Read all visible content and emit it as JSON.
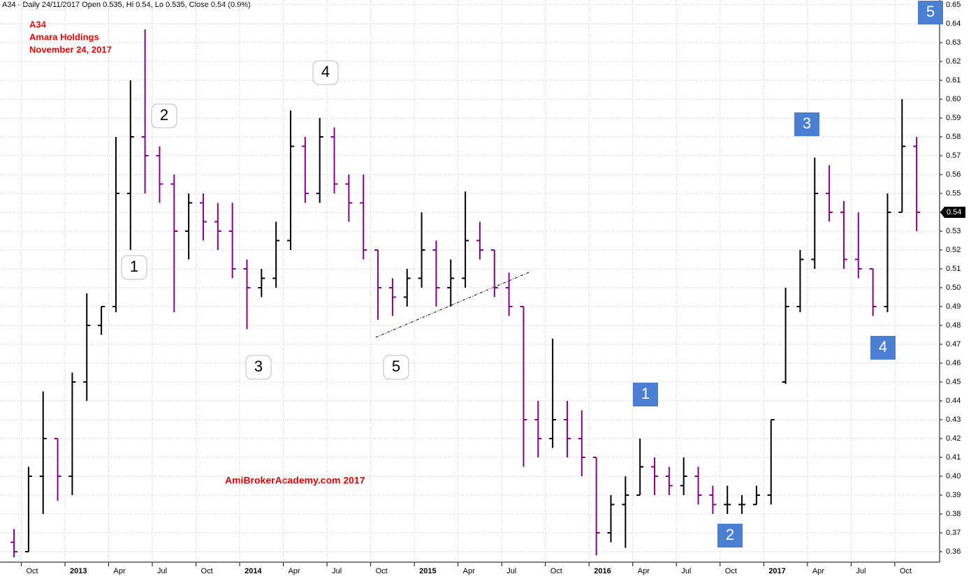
{
  "chart_data": {
    "type": "ohlc",
    "header": "A34 - Daily 24/11/2017 Open 0.535, Hi 0.54, Lo 0.535, Close 0.54 (0.9%)",
    "annotations": [
      "A34",
      "Amara Holdings",
      "November 24, 2017"
    ],
    "watermark": "AmiBrokerAcademy.com  2017",
    "wave_labels": [
      "1",
      "2",
      "3",
      "4",
      "5"
    ],
    "wave_labels_blue": [
      "1",
      "2",
      "3",
      "4",
      "5"
    ],
    "last_price": 0.54,
    "up_color": "#000000",
    "down_color": "#8b008b",
    "grid": true,
    "categories": [
      null,
      "Oct",
      null,
      null,
      "2013",
      null,
      null,
      "Apr",
      null,
      null,
      "Jul",
      null,
      null,
      "Oct",
      null,
      null,
      "2014",
      null,
      null,
      "Apr",
      null,
      null,
      "Jul",
      null,
      null,
      "Oct",
      null,
      null,
      "2015",
      null,
      null,
      "Apr",
      null,
      null,
      "Jul",
      null,
      null,
      "Oct",
      null,
      null,
      "2016",
      null,
      null,
      "Apr",
      null,
      null,
      "Jul",
      null,
      null,
      "Oct",
      null,
      null,
      "2017",
      null,
      null,
      "Apr",
      null,
      null,
      "Jul",
      null,
      null,
      "Oct",
      null
    ],
    "open": [
      0.365,
      0.36,
      0.4,
      0.42,
      0.4,
      0.45,
      0.48,
      0.49,
      0.55,
      0.58,
      0.57,
      0.555,
      0.53,
      0.545,
      0.535,
      0.53,
      0.51,
      0.5,
      0.505,
      0.525,
      0.575,
      0.55,
      0.58,
      0.555,
      0.545,
      0.52,
      0.5,
      0.495,
      0.505,
      0.52,
      0.5,
      0.505,
      0.525,
      0.52,
      0.5,
      0.49,
      0.43,
      0.42,
      0.43,
      0.42,
      0.41,
      0.37,
      0.385,
      0.39,
      0.405,
      0.4,
      0.395,
      0.4,
      0.39,
      0.385,
      0.385,
      0.385,
      0.39,
      0.45,
      0.49,
      0.515,
      0.55,
      0.54,
      0.515,
      0.51,
      0.49,
      0.54,
      0.575
    ],
    "high": [
      0.372,
      0.405,
      0.445,
      0.42,
      0.455,
      0.497,
      0.49,
      0.58,
      0.61,
      0.637,
      0.575,
      0.56,
      0.55,
      0.55,
      0.545,
      0.545,
      0.515,
      0.51,
      0.535,
      0.594,
      0.58,
      0.59,
      0.585,
      0.56,
      0.56,
      0.52,
      0.505,
      0.51,
      0.54,
      0.525,
      0.515,
      0.551,
      0.535,
      0.52,
      0.508,
      0.49,
      0.44,
      0.473,
      0.44,
      0.435,
      0.41,
      0.39,
      0.4,
      0.42,
      0.41,
      0.405,
      0.41,
      0.405,
      0.395,
      0.395,
      0.39,
      0.395,
      0.43,
      0.5,
      0.52,
      0.569,
      0.565,
      0.546,
      0.54,
      0.51,
      0.55,
      0.6,
      0.58
    ],
    "low": [
      0.357,
      0.36,
      0.38,
      0.387,
      0.39,
      0.44,
      0.475,
      0.487,
      0.52,
      0.55,
      0.545,
      0.487,
      0.515,
      0.525,
      0.52,
      0.505,
      0.478,
      0.495,
      0.5,
      0.52,
      0.545,
      0.545,
      0.55,
      0.535,
      0.515,
      0.483,
      0.485,
      0.49,
      0.5,
      0.49,
      0.49,
      0.5,
      0.515,
      0.495,
      0.485,
      0.405,
      0.41,
      0.415,
      0.41,
      0.4,
      0.358,
      0.365,
      0.362,
      0.39,
      0.39,
      0.39,
      0.39,
      0.385,
      0.38,
      0.38,
      0.38,
      0.385,
      0.385,
      0.449,
      0.487,
      0.51,
      0.535,
      0.51,
      0.505,
      0.485,
      0.487,
      0.54,
      0.53
    ],
    "close": [
      0.36,
      0.4,
      0.42,
      0.4,
      0.45,
      0.48,
      0.49,
      0.55,
      0.58,
      0.57,
      0.555,
      0.53,
      0.545,
      0.535,
      0.53,
      0.51,
      0.5,
      0.505,
      0.525,
      0.575,
      0.55,
      0.58,
      0.555,
      0.545,
      0.52,
      0.5,
      0.495,
      0.505,
      0.52,
      0.5,
      0.505,
      0.525,
      0.52,
      0.5,
      0.49,
      0.43,
      0.42,
      0.43,
      0.42,
      0.41,
      0.37,
      0.385,
      0.39,
      0.405,
      0.4,
      0.395,
      0.4,
      0.39,
      0.385,
      0.385,
      0.385,
      0.39,
      0.43,
      0.49,
      0.515,
      0.55,
      0.54,
      0.515,
      0.51,
      0.49,
      0.54,
      0.575,
      0.54
    ],
    "ylim": [
      0.355,
      0.655
    ],
    "yticks": [
      0.36,
      0.37,
      0.38,
      0.39,
      {
        "value": 0.4,
        "label": "0.40"
      },
      0.41,
      0.42,
      0.43,
      0.44,
      0.45,
      0.46,
      0.47,
      0.48,
      0.49,
      {
        "value": 0.5,
        "label": "0.50"
      },
      0.51,
      0.52,
      0.53,
      0.54,
      0.55,
      0.56,
      0.57,
      0.58,
      0.59,
      {
        "value": 0.6,
        "label": "0.60"
      },
      0.61,
      0.62,
      0.63,
      0.64,
      0.65
    ]
  }
}
